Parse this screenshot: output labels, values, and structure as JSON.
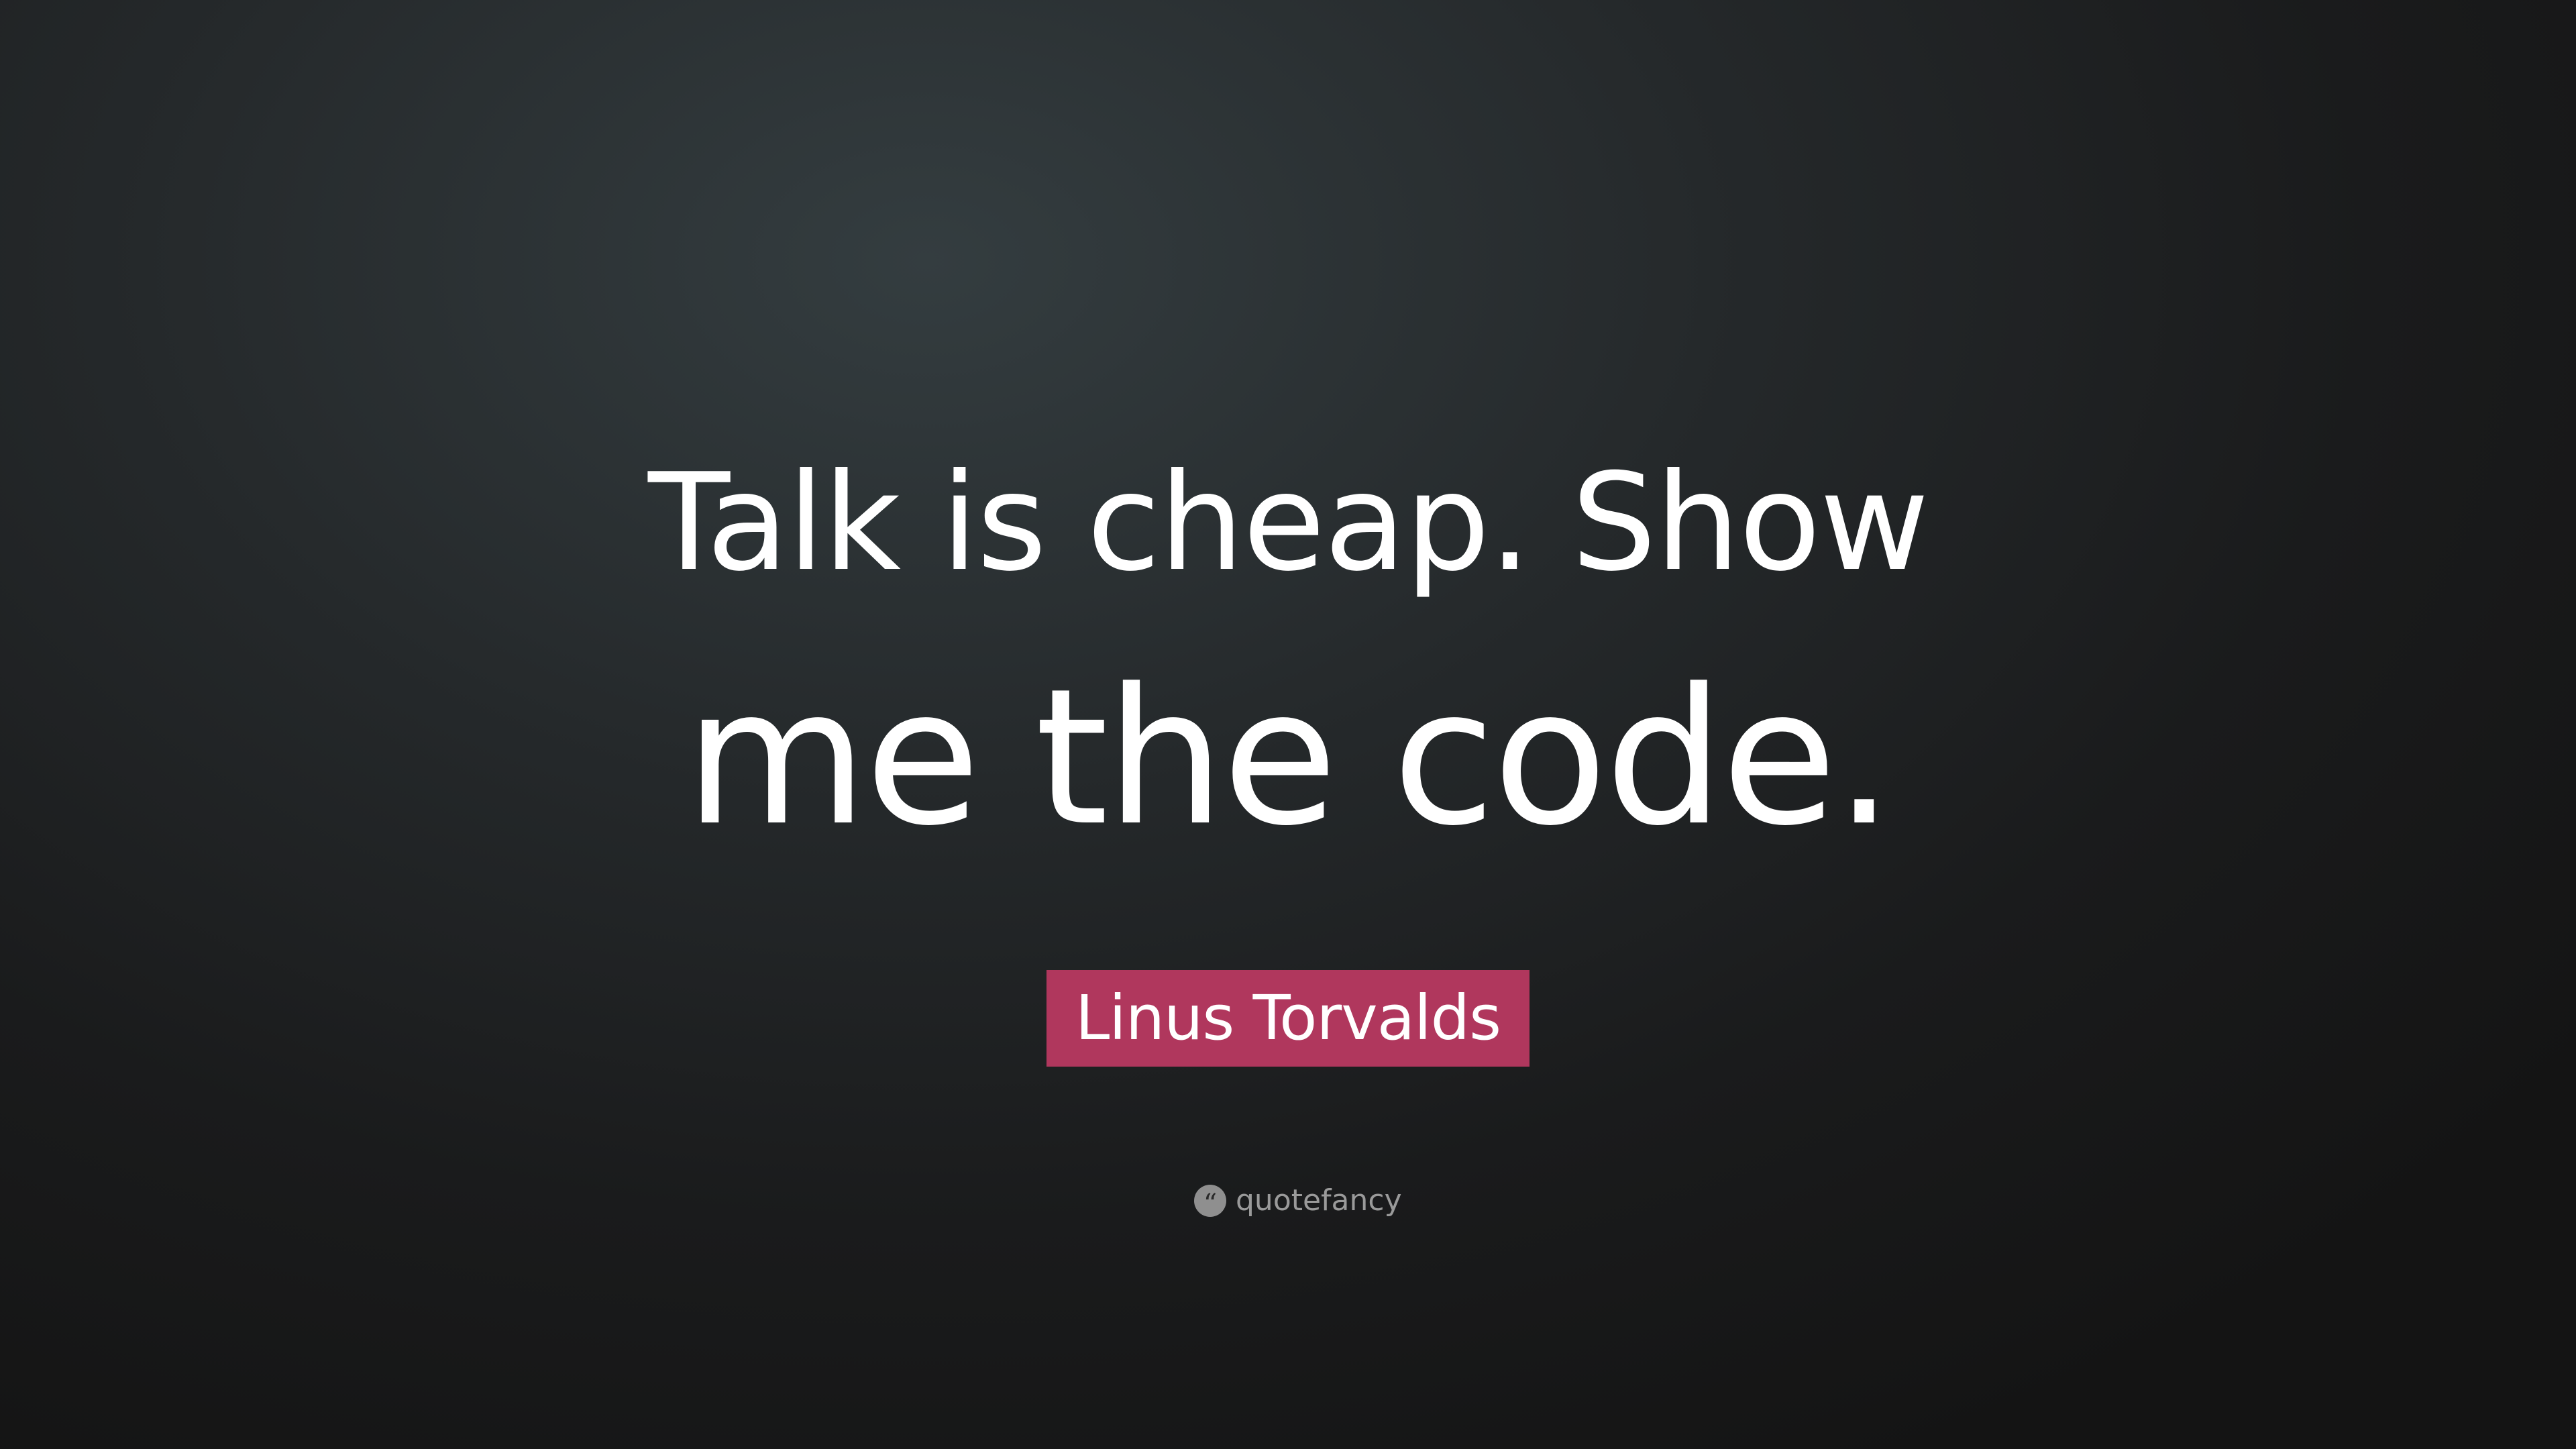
{
  "quote": {
    "line_1": "Talk is cheap. Show",
    "line_2": "me the code."
  },
  "author": {
    "name": "Linus Torvalds",
    "badge_color": "#b0375d"
  },
  "brand": {
    "icon": "quote-marks-icon",
    "icon_glyph": "“",
    "name": "quotefancy"
  }
}
